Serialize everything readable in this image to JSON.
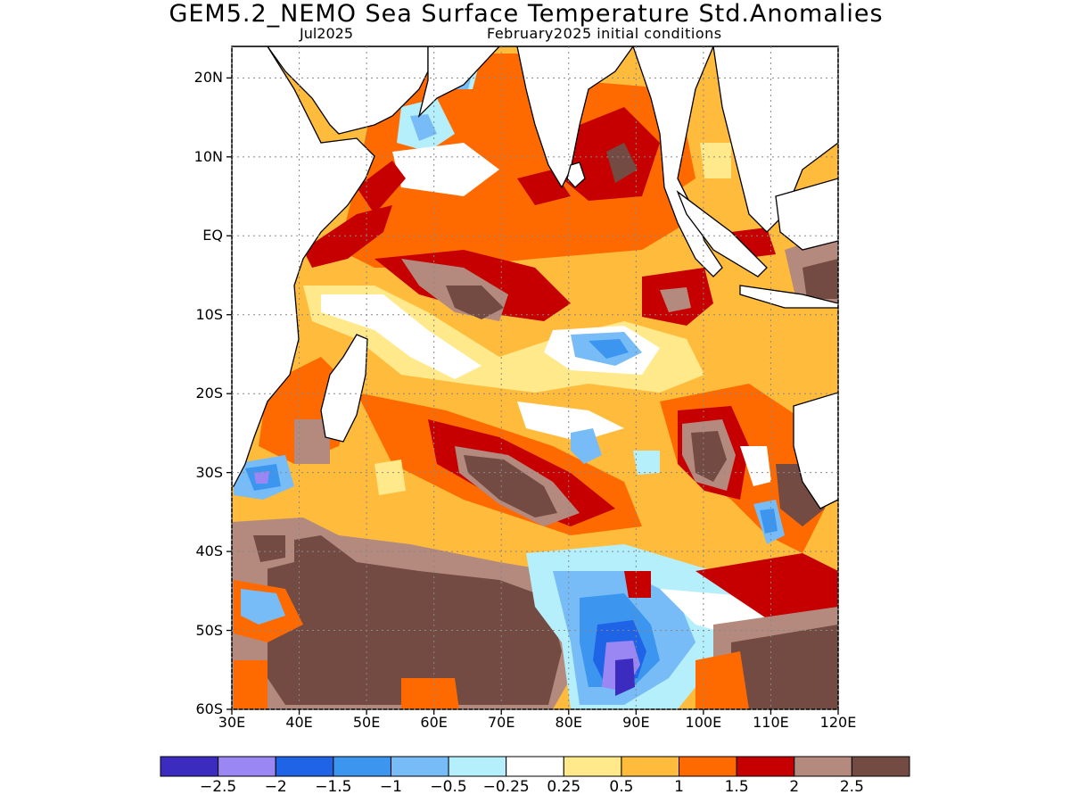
{
  "title": "GEM5.2_NEMO Sea Surface Temperature Std.Anomalies",
  "subtitle_left": "Jul2025",
  "subtitle_right": "February2025 initial conditions",
  "lat_labels": [
    "20N",
    "10N",
    "EQ",
    "10S",
    "20S",
    "30S",
    "40S",
    "50S",
    "60S"
  ],
  "lon_labels": [
    "30E",
    "40E",
    "50E",
    "60E",
    "70E",
    "80E",
    "90E",
    "100E",
    "110E",
    "120E"
  ],
  "colorbar": {
    "colors": [
      "#3c2bbf",
      "#9b87f3",
      "#1f63e6",
      "#3c96f0",
      "#78bcf7",
      "#b4effb",
      "#ffffff",
      "#ffe98a",
      "#ffbb3c",
      "#ff6a00",
      "#c60000",
      "#b48a7f",
      "#734b42"
    ],
    "labels": [
      "−2.5",
      "−2",
      "−1.5",
      "−1",
      "−0.5",
      "−0.25",
      "0.25",
      "0.5",
      "1",
      "1.5",
      "2",
      "2.5"
    ]
  },
  "map": {
    "lon_range": [
      30,
      120
    ],
    "lat_range": [
      -60,
      24
    ],
    "land_color": "#ffffff",
    "grid": "dotted"
  }
}
